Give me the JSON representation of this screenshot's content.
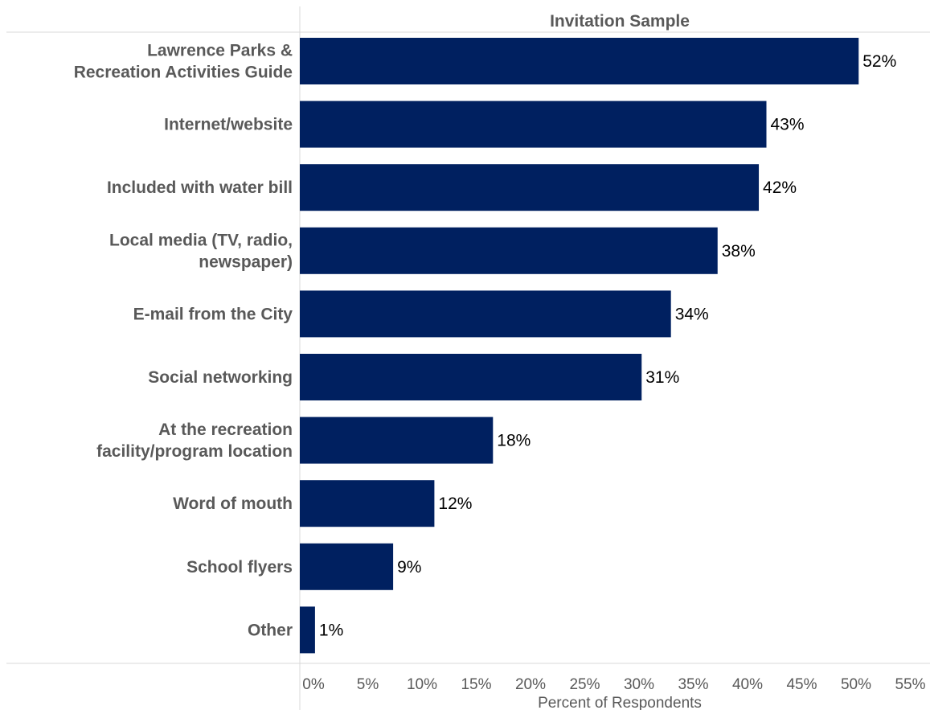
{
  "chart_data": {
    "type": "bar",
    "orientation": "horizontal",
    "title_lines": [
      "Invitation Sample"
    ],
    "categories": [
      [
        "Lawrence Parks &",
        "Recreation Activities Guide"
      ],
      [
        "Internet/website"
      ],
      [
        "Included with water bill"
      ],
      [
        "Local media (TV, radio,",
        "newspaper)"
      ],
      [
        "E-mail from the City"
      ],
      [
        "Social networking"
      ],
      [
        "At the recreation",
        "facility/program location"
      ],
      [
        "Word of mouth"
      ],
      [
        "School flyers"
      ],
      [
        "Other"
      ]
    ],
    "values": [
      51.5,
      43,
      42.3,
      38.5,
      34.2,
      31.5,
      17.8,
      12.4,
      8.6,
      1.4
    ],
    "data_labels": [
      "52%",
      "43%",
      "42%",
      "38%",
      "34%",
      "31%",
      "18%",
      "12%",
      "9%",
      "1%"
    ],
    "xlim": [
      0,
      55
    ],
    "xticks": [
      "0%",
      "5%",
      "10%",
      "15%",
      "20%",
      "25%",
      "30%",
      "35%",
      "40%",
      "45%",
      "50%",
      "55%"
    ],
    "xlabel": "Percent of Respondents",
    "ylabel": "",
    "grid": false,
    "legend": "none",
    "bar_color": "#002060"
  }
}
